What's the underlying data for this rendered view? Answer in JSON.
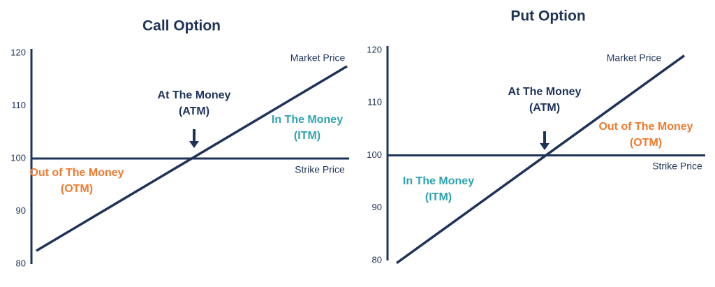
{
  "chart_data": [
    {
      "type": "line",
      "title": "Call Option",
      "categories": [
        null,
        null
      ],
      "values": [
        82.5,
        117.5
      ],
      "color": "#1f3358",
      "ylim": [
        80,
        120
      ],
      "yticks": [
        80,
        90,
        100,
        110,
        120
      ],
      "line_label": "Market Price",
      "hline": 100,
      "hline_label": "Strike Price",
      "annotations": [
        {
          "lines": [
            "At The Money",
            "(ATM)"
          ],
          "color": "#1f3358",
          "arrow": true
        },
        {
          "lines": [
            "Out of The Money",
            "(OTM)"
          ],
          "color": "#f07a2e",
          "arrow": false
        },
        {
          "lines": [
            "In The Money",
            "(ITM)"
          ],
          "color": "#2fa3ad",
          "arrow": false
        }
      ]
    },
    {
      "type": "line",
      "title": "Put Option",
      "categories": [
        null,
        null
      ],
      "values": [
        79.5,
        119
      ],
      "color": "#1f3358",
      "ylim": [
        80,
        120
      ],
      "yticks": [
        80,
        90,
        100,
        110,
        120
      ],
      "line_label": "Market Price",
      "hline": 100,
      "hline_label": "Strike Price",
      "annotations": [
        {
          "lines": [
            "At The Money",
            "(ATM)"
          ],
          "color": "#1f3358",
          "arrow": true
        },
        {
          "lines": [
            "Out of The Money",
            "(OTM)"
          ],
          "color": "#f07a2e",
          "arrow": false
        },
        {
          "lines": [
            "In The Money",
            "(ITM)"
          ],
          "color": "#2fa3ad",
          "arrow": false
        }
      ]
    }
  ]
}
